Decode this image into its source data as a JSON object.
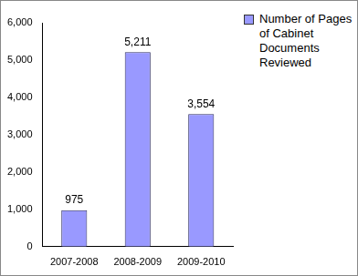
{
  "chart_data": {
    "type": "bar",
    "categories": [
      "2007-2008",
      "2008-2009",
      "2009-2010"
    ],
    "series": [
      {
        "name": "Number of Pages of Cabinet Documents Reviewed",
        "color": "#9999ff",
        "values": [
          975,
          5211,
          3554
        ],
        "value_labels": [
          "975",
          "5,211",
          "3,554"
        ]
      }
    ],
    "ylim": [
      0,
      6000
    ],
    "yticks": [
      0,
      {
        "value": 1000,
        "label": "1,000"
      },
      {
        "value": 2000,
        "label": "2,000"
      },
      {
        "value": 3000,
        "label": "3,000"
      },
      {
        "value": 4000,
        "label": "4,000"
      },
      {
        "value": 5000,
        "label": "5,000"
      },
      {
        "value": 6000,
        "label": "6,000"
      }
    ],
    "grid": false,
    "legend": "right",
    "data_labels": true
  }
}
